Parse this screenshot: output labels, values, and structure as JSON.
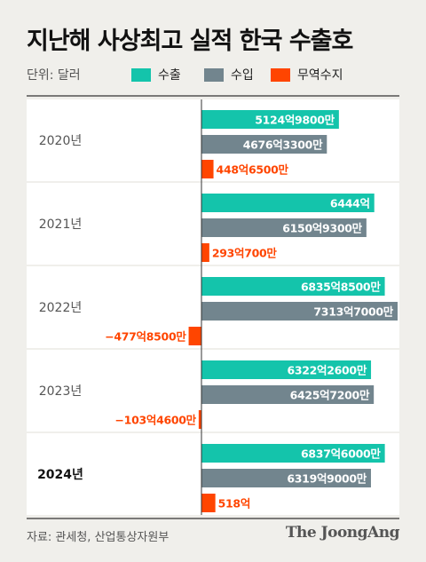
{
  "title": "지난해 사상최고 실적 한국 수출호",
  "unit_label": "단위: 달러",
  "source": "자료: 관세청, 산업통상자원부",
  "brand": "The JoongAng",
  "colors": {
    "export": "#14c4ab",
    "import": "#72858e",
    "balance": "#ff4500",
    "rule": "#333333",
    "row_bg": "#ffffff",
    "page_bg": "#f0efeb"
  },
  "chart_data": {
    "type": "bar",
    "orientation": "horizontal",
    "unit": "억 달러",
    "categories": [
      "2020년",
      "2021년",
      "2022년",
      "2023년",
      "2024년"
    ],
    "highlight_category": "2024년",
    "series": [
      {
        "name": "수출",
        "key": "export",
        "values": [
          5124.98,
          6444.0,
          6835.85,
          6322.26,
          6837.6
        ],
        "labels": [
          "5124억9800만",
          "6444억",
          "6835억8500만",
          "6322억2600만",
          "6837억6000만"
        ]
      },
      {
        "name": "수입",
        "key": "import",
        "values": [
          4676.33,
          6150.93,
          7313.7,
          6425.72,
          6319.9
        ],
        "labels": [
          "4676억3300만",
          "6150억9300만",
          "7313억7000만",
          "6425억7200만",
          "6319억9000만"
        ]
      },
      {
        "name": "무역수지",
        "key": "balance",
        "values": [
          448.65,
          293.07,
          -477.85,
          -103.46,
          518.0
        ],
        "labels": [
          "448억6500만",
          "293억700만",
          "−477억8500만",
          "−103억4600만",
          "518억"
        ]
      }
    ],
    "legend_position": "top"
  }
}
